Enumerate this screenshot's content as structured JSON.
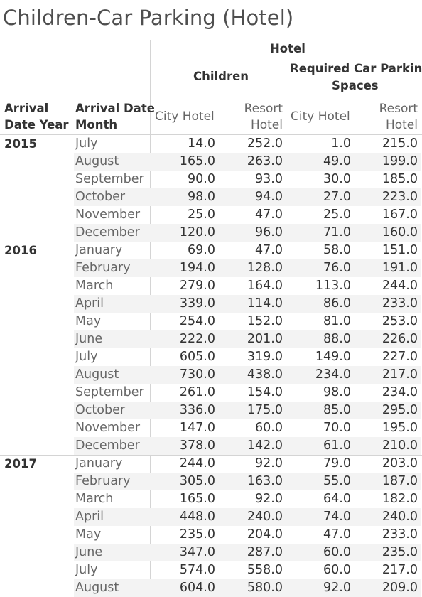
{
  "title": "Children-Car Parking (Hotel)",
  "headers": {
    "hotel": "Hotel",
    "children": "Children",
    "required_l1": "Required Car Parking",
    "required_l2": "Spaces",
    "arrival_year_l1": "Arrival",
    "arrival_year_l2": "Date Year",
    "arrival_month_l1": "Arrival Date",
    "arrival_month_l2": "Month",
    "city_hotel": "City Hotel",
    "resort_l1": "Resort",
    "resort_l2": "Hotel"
  },
  "chart_data": {
    "type": "table",
    "columns": [
      "Children / City Hotel",
      "Children / Resort Hotel",
      "Required Car Parking Spaces / City Hotel",
      "Required Car Parking Spaces / Resort Hotel"
    ],
    "groups": [
      {
        "year": "2015",
        "rows": [
          {
            "month": "July",
            "values": [
              "14.0",
              "252.0",
              "1.0",
              "215.0"
            ]
          },
          {
            "month": "August",
            "values": [
              "165.0",
              "263.0",
              "49.0",
              "199.0"
            ]
          },
          {
            "month": "September",
            "values": [
              "90.0",
              "93.0",
              "30.0",
              "185.0"
            ]
          },
          {
            "month": "October",
            "values": [
              "98.0",
              "94.0",
              "27.0",
              "223.0"
            ]
          },
          {
            "month": "November",
            "values": [
              "25.0",
              "47.0",
              "25.0",
              "167.0"
            ]
          },
          {
            "month": "December",
            "values": [
              "120.0",
              "96.0",
              "71.0",
              "160.0"
            ]
          }
        ]
      },
      {
        "year": "2016",
        "rows": [
          {
            "month": "January",
            "values": [
              "69.0",
              "47.0",
              "58.0",
              "151.0"
            ]
          },
          {
            "month": "February",
            "values": [
              "194.0",
              "128.0",
              "76.0",
              "191.0"
            ]
          },
          {
            "month": "March",
            "values": [
              "279.0",
              "164.0",
              "113.0",
              "244.0"
            ]
          },
          {
            "month": "April",
            "values": [
              "339.0",
              "114.0",
              "86.0",
              "233.0"
            ]
          },
          {
            "month": "May",
            "values": [
              "254.0",
              "152.0",
              "81.0",
              "253.0"
            ]
          },
          {
            "month": "June",
            "values": [
              "222.0",
              "201.0",
              "88.0",
              "226.0"
            ]
          },
          {
            "month": "July",
            "values": [
              "605.0",
              "319.0",
              "149.0",
              "227.0"
            ]
          },
          {
            "month": "August",
            "values": [
              "730.0",
              "438.0",
              "234.0",
              "217.0"
            ]
          },
          {
            "month": "September",
            "values": [
              "261.0",
              "154.0",
              "98.0",
              "234.0"
            ]
          },
          {
            "month": "October",
            "values": [
              "336.0",
              "175.0",
              "85.0",
              "295.0"
            ]
          },
          {
            "month": "November",
            "values": [
              "147.0",
              "60.0",
              "70.0",
              "195.0"
            ]
          },
          {
            "month": "December",
            "values": [
              "378.0",
              "142.0",
              "61.0",
              "210.0"
            ]
          }
        ]
      },
      {
        "year": "2017",
        "rows": [
          {
            "month": "January",
            "values": [
              "244.0",
              "92.0",
              "79.0",
              "203.0"
            ]
          },
          {
            "month": "February",
            "values": [
              "305.0",
              "163.0",
              "55.0",
              "187.0"
            ]
          },
          {
            "month": "March",
            "values": [
              "165.0",
              "92.0",
              "64.0",
              "182.0"
            ]
          },
          {
            "month": "April",
            "values": [
              "448.0",
              "240.0",
              "74.0",
              "240.0"
            ]
          },
          {
            "month": "May",
            "values": [
              "235.0",
              "204.0",
              "47.0",
              "233.0"
            ]
          },
          {
            "month": "June",
            "values": [
              "347.0",
              "287.0",
              "60.0",
              "235.0"
            ]
          },
          {
            "month": "July",
            "values": [
              "574.0",
              "558.0",
              "60.0",
              "217.0"
            ]
          },
          {
            "month": "August",
            "values": [
              "604.0",
              "580.0",
              "92.0",
              "209.0"
            ]
          }
        ]
      }
    ]
  }
}
